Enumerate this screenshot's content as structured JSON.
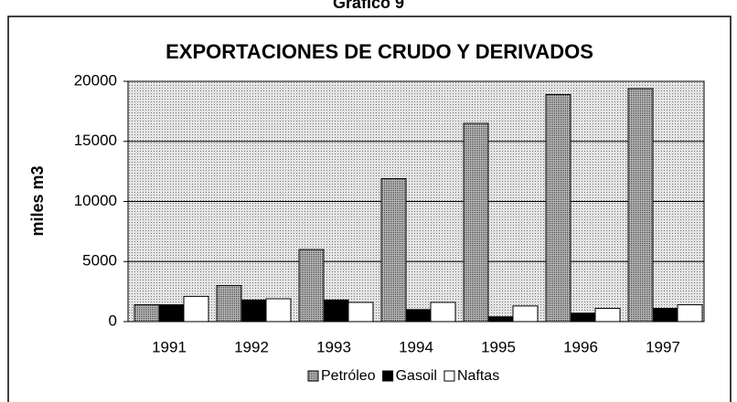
{
  "chart_data": {
    "type": "bar",
    "heading": "Gráfico 9",
    "title": "EXPORTACIONES DE CRUDO Y DERIVADOS",
    "y_label": "miles m3",
    "categories": [
      "1991",
      "1992",
      "1993",
      "1994",
      "1995",
      "1996",
      "1997"
    ],
    "series": [
      {
        "name": "Petróleo",
        "color": "#8c8c8c",
        "values": [
          1400,
          3000,
          6000,
          11900,
          16500,
          18900,
          19400
        ]
      },
      {
        "name": "Gasoil",
        "color": "#000000",
        "values": [
          1400,
          1800,
          1800,
          1000,
          400,
          700,
          1100
        ]
      },
      {
        "name": "Naftas",
        "color": "#ffffff",
        "values": [
          2100,
          1900,
          1600,
          1600,
          1300,
          1100,
          1400
        ]
      }
    ],
    "ylim": [
      0,
      20000
    ],
    "yticks": [
      0,
      5000,
      10000,
      15000,
      20000
    ],
    "grid": true
  }
}
